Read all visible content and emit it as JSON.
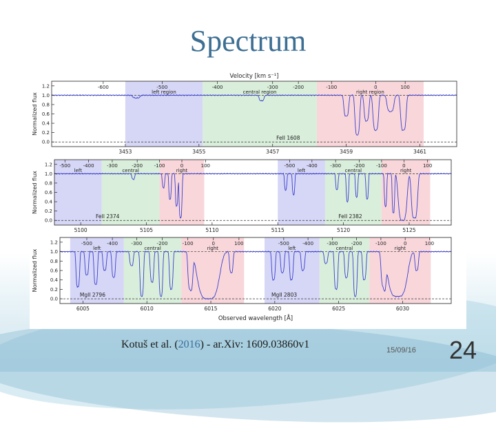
{
  "slide": {
    "title": "Spectrum",
    "citation_authors": "Kotuš et al. (",
    "citation_year": "2016",
    "citation_rest": ") - ar.Xiv: 1609.03860v1",
    "date": "15/09/16",
    "number": "24"
  },
  "colors": {
    "left_region": "#d6d6f6",
    "central_region": "#d9eedb",
    "right_region": "#f8d6da",
    "spectrum_line": "#3a3fcf",
    "title": "#3d6f93"
  },
  "chart_data": [
    {
      "type": "line",
      "ion_label": "FeII 1608",
      "top_axis_label": "Velocity [km s⁻¹]",
      "ylabel": "Normalized flux",
      "ylim": [
        -0.1,
        1.3
      ],
      "yticks": [
        "0.0",
        "0.2",
        "0.4",
        "0.6",
        "0.8",
        "1.0",
        "1.2"
      ],
      "xlim": [
        3451,
        3462
      ],
      "xticks": [
        "3453",
        "3455",
        "3457",
        "3459",
        "3461"
      ],
      "velocity_ticks": [
        {
          "label": "-600",
          "x": 3452.4
        },
        {
          "label": "-500",
          "x": 3454.0
        },
        {
          "label": "-400",
          "x": 3455.5
        },
        {
          "label": "-300",
          "x": 3457.0
        },
        {
          "label": "-200",
          "x": 3457.7
        },
        {
          "label": "-100",
          "x": 3458.6
        },
        {
          "label": "0",
          "x": 3459.8
        },
        {
          "label": "100",
          "x": 3460.6
        }
      ],
      "regions": [
        {
          "name": "left region",
          "from": 3453.0,
          "to": 3455.1
        },
        {
          "name": "central region",
          "from": 3455.1,
          "to": 3458.2
        },
        {
          "name": "right region",
          "from": 3458.2,
          "to": 3461.1
        }
      ],
      "absorption_lines": [
        {
          "x": 3453.3,
          "depth": 0.06,
          "width": 0.1
        },
        {
          "x": 3456.7,
          "depth": 0.12,
          "width": 0.07
        },
        {
          "x": 3459.0,
          "depth": 0.45,
          "width": 0.07
        },
        {
          "x": 3459.3,
          "depth": 0.85,
          "width": 0.07
        },
        {
          "x": 3459.55,
          "depth": 0.55,
          "width": 0.07
        },
        {
          "x": 3459.8,
          "depth": 0.75,
          "width": 0.08
        },
        {
          "x": 3460.2,
          "depth": 0.35,
          "width": 0.1
        },
        {
          "x": 3460.55,
          "depth": 0.75,
          "width": 0.08
        }
      ]
    },
    {
      "type": "line",
      "ion_labels": [
        "FeII 2374",
        "FeII 2382"
      ],
      "ylabel": "Normalized flux",
      "ylim": [
        -0.1,
        1.3
      ],
      "yticks": [
        "0.0",
        "0.2",
        "0.4",
        "0.6",
        "0.8",
        "1.0",
        "1.2"
      ],
      "xlim": [
        5098,
        5128.2
      ],
      "xticks": [
        "5100",
        "5105",
        "5110",
        "5115",
        "5120",
        "5125"
      ],
      "velocity_ticks": [
        {
          "label": "-500",
          "x": 5098.8
        },
        {
          "label": "-400",
          "x": 5100.6
        },
        {
          "label": "-300",
          "x": 5102.4
        },
        {
          "label": "-200",
          "x": 5104.3
        },
        {
          "label": "-100",
          "x": 5106.0
        },
        {
          "label": "0",
          "x": 5107.7
        },
        {
          "label": "100",
          "x": 5109.5
        },
        {
          "label": "-500",
          "x": 5115.9
        },
        {
          "label": "-400",
          "x": 5117.6
        },
        {
          "label": "-300",
          "x": 5119.4
        },
        {
          "label": "-200",
          "x": 5121.2
        },
        {
          "label": "-100",
          "x": 5122.9
        },
        {
          "label": "0",
          "x": 5124.6
        },
        {
          "label": "100",
          "x": 5126.4
        }
      ],
      "regions": [
        {
          "name": "left",
          "from": 5098.0,
          "to": 5101.6
        },
        {
          "name": "central",
          "from": 5101.6,
          "to": 5106.0
        },
        {
          "name": "right",
          "from": 5106.0,
          "to": 5109.4
        },
        {
          "name": "left",
          "from": 5115.0,
          "to": 5118.6
        },
        {
          "name": "central",
          "from": 5118.6,
          "to": 5122.9
        },
        {
          "name": "right",
          "from": 5122.9,
          "to": 5126.6
        }
      ],
      "absorption_lines": [
        {
          "x": 5104.0,
          "depth": 0.12,
          "width": 0.12
        },
        {
          "x": 5106.3,
          "depth": 0.3,
          "width": 0.1
        },
        {
          "x": 5106.8,
          "depth": 0.55,
          "width": 0.1
        },
        {
          "x": 5107.3,
          "depth": 0.7,
          "width": 0.1
        },
        {
          "x": 5107.6,
          "depth": 0.95,
          "width": 0.12
        },
        {
          "x": 5115.6,
          "depth": 0.35,
          "width": 0.1
        },
        {
          "x": 5116.2,
          "depth": 0.45,
          "width": 0.1
        },
        {
          "x": 5119.5,
          "depth": 0.35,
          "width": 0.1
        },
        {
          "x": 5120.3,
          "depth": 0.6,
          "width": 0.1
        },
        {
          "x": 5121.0,
          "depth": 0.5,
          "width": 0.1
        },
        {
          "x": 5121.8,
          "depth": 0.55,
          "width": 0.1
        },
        {
          "x": 5123.2,
          "depth": 0.7,
          "width": 0.1
        },
        {
          "x": 5123.8,
          "depth": 0.85,
          "width": 0.1
        },
        {
          "x": 5124.5,
          "depth": 1.0,
          "width": 0.35
        },
        {
          "x": 5125.4,
          "depth": 0.95,
          "width": 0.25
        }
      ]
    },
    {
      "type": "line",
      "ion_labels": [
        "MgII 2796",
        "MgII 2803"
      ],
      "ylabel": "Normalized flux",
      "xlabel": "Observed wavelength [Å]",
      "ylim": [
        -0.1,
        1.3
      ],
      "yticks": [
        "0.0",
        "0.2",
        "0.4",
        "0.6",
        "0.8",
        "1.0",
        "1.2"
      ],
      "xlim": [
        6003.2,
        6033.8
      ],
      "xticks": [
        "6005",
        "6010",
        "6015",
        "6020",
        "6025",
        "6030"
      ],
      "velocity_ticks": [
        {
          "label": "-500",
          "x": 6005.3
        },
        {
          "label": "-400",
          "x": 6007.3
        },
        {
          "label": "-300",
          "x": 6009.2
        },
        {
          "label": "-200",
          "x": 6011.2
        },
        {
          "label": "-100",
          "x": 6013.2
        },
        {
          "label": "0",
          "x": 6015.2
        },
        {
          "label": "100",
          "x": 6017.2
        },
        {
          "label": "-500",
          "x": 6020.7
        },
        {
          "label": "-400",
          "x": 6022.6
        },
        {
          "label": "-300",
          "x": 6024.5
        },
        {
          "label": "-200",
          "x": 6026.4
        },
        {
          "label": "-100",
          "x": 6028.3
        },
        {
          "label": "0",
          "x": 6030.2
        },
        {
          "label": "100",
          "x": 6032.1
        }
      ],
      "regions": [
        {
          "name": "left",
          "from": 6004.0,
          "to": 6008.2
        },
        {
          "name": "central",
          "from": 6008.2,
          "to": 6012.7
        },
        {
          "name": "right",
          "from": 6012.7,
          "to": 6017.6
        },
        {
          "name": "left",
          "from": 6019.2,
          "to": 6023.5
        },
        {
          "name": "central",
          "from": 6023.5,
          "to": 6027.4
        },
        {
          "name": "right",
          "from": 6027.4,
          "to": 6032.2
        }
      ],
      "absorption_lines": [
        {
          "x": 6004.6,
          "depth": 0.75,
          "width": 0.15
        },
        {
          "x": 6005.3,
          "depth": 0.5,
          "width": 0.15
        },
        {
          "x": 6006.0,
          "depth": 0.7,
          "width": 0.15
        },
        {
          "x": 6006.7,
          "depth": 0.4,
          "width": 0.15
        },
        {
          "x": 6007.4,
          "depth": 0.55,
          "width": 0.15
        },
        {
          "x": 6008.8,
          "depth": 0.3,
          "width": 0.15
        },
        {
          "x": 6009.6,
          "depth": 0.95,
          "width": 0.15
        },
        {
          "x": 6010.4,
          "depth": 0.65,
          "width": 0.15
        },
        {
          "x": 6011.1,
          "depth": 0.95,
          "width": 0.15
        },
        {
          "x": 6011.9,
          "depth": 0.8,
          "width": 0.15
        },
        {
          "x": 6013.4,
          "depth": 0.8,
          "width": 0.2
        },
        {
          "x": 6014.8,
          "depth": 1.0,
          "width": 0.9
        },
        {
          "x": 6016.6,
          "depth": 0.45,
          "width": 0.15
        },
        {
          "x": 6019.9,
          "depth": 0.6,
          "width": 0.15
        },
        {
          "x": 6020.6,
          "depth": 0.45,
          "width": 0.15
        },
        {
          "x": 6021.3,
          "depth": 0.6,
          "width": 0.15
        },
        {
          "x": 6022.2,
          "depth": 0.4,
          "width": 0.15
        },
        {
          "x": 6024.0,
          "depth": 0.25,
          "width": 0.15
        },
        {
          "x": 6024.8,
          "depth": 0.8,
          "width": 0.15
        },
        {
          "x": 6025.6,
          "depth": 0.55,
          "width": 0.15
        },
        {
          "x": 6026.3,
          "depth": 0.95,
          "width": 0.15
        },
        {
          "x": 6027.0,
          "depth": 0.6,
          "width": 0.15
        },
        {
          "x": 6028.5,
          "depth": 0.7,
          "width": 0.2
        },
        {
          "x": 6029.6,
          "depth": 0.95,
          "width": 0.8
        },
        {
          "x": 6031.1,
          "depth": 0.4,
          "width": 0.15
        }
      ]
    }
  ]
}
